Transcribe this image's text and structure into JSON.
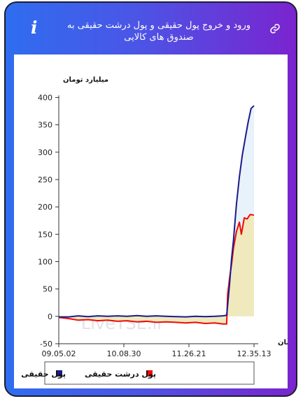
{
  "header": {
    "title": "ورود و خروج پول حقیقی و پول درشت حقیقی به صندوق های کالایی",
    "info_glyph": "i",
    "icons": {
      "info": "info-icon",
      "link": "link-icon"
    },
    "colors": {
      "gradient_start": "#2f6df0",
      "gradient_end": "#7a24cf"
    }
  },
  "chart_data": {
    "type": "area",
    "ylabel": "میلیارد تومان",
    "xlabel": "زمان",
    "ylim": [
      -50,
      400
    ],
    "yticks": [
      400,
      350,
      300,
      250,
      200,
      150,
      100,
      50,
      0,
      -50
    ],
    "xtick_labels": [
      "09.05.02",
      "10.08.30",
      "11.26.21",
      "12.35.13"
    ],
    "grid": false,
    "legend_position": "bottom",
    "watermark": "LiveTSE.ir",
    "series": [
      {
        "name": "پول حقیقی",
        "color": "#1a1a8c",
        "fill": "#e8f2fb",
        "points": [
          [
            0,
            -1
          ],
          [
            0.05,
            -1
          ],
          [
            0.1,
            1
          ],
          [
            0.15,
            -0.5
          ],
          [
            0.2,
            1
          ],
          [
            0.25,
            0
          ],
          [
            0.3,
            1
          ],
          [
            0.35,
            0
          ],
          [
            0.4,
            1.5
          ],
          [
            0.45,
            0
          ],
          [
            0.5,
            1
          ],
          [
            0.55,
            0
          ],
          [
            0.6,
            -0.5
          ],
          [
            0.65,
            -1
          ],
          [
            0.7,
            0
          ],
          [
            0.75,
            -0.5
          ],
          [
            0.8,
            0
          ],
          [
            0.84,
            1
          ],
          [
            0.86,
            2
          ],
          [
            0.865,
            20
          ],
          [
            0.875,
            60
          ],
          [
            0.885,
            105
          ],
          [
            0.895,
            140
          ],
          [
            0.91,
            205
          ],
          [
            0.925,
            255
          ],
          [
            0.94,
            295
          ],
          [
            0.955,
            325
          ],
          [
            0.97,
            355
          ],
          [
            0.985,
            380
          ],
          [
            1.0,
            385
          ]
        ]
      },
      {
        "name": "پول درشت حقیقی",
        "color": "#f00a0a",
        "fill": "#efe9bd",
        "points": [
          [
            0,
            -2
          ],
          [
            0.05,
            -4
          ],
          [
            0.1,
            -7
          ],
          [
            0.15,
            -6
          ],
          [
            0.2,
            -8
          ],
          [
            0.25,
            -7
          ],
          [
            0.3,
            -9
          ],
          [
            0.35,
            -8
          ],
          [
            0.4,
            -10
          ],
          [
            0.45,
            -9
          ],
          [
            0.5,
            -11
          ],
          [
            0.55,
            -10
          ],
          [
            0.6,
            -11
          ],
          [
            0.65,
            -12
          ],
          [
            0.7,
            -11
          ],
          [
            0.75,
            -13
          ],
          [
            0.8,
            -12
          ],
          [
            0.84,
            -14
          ],
          [
            0.86,
            -14
          ],
          [
            0.865,
            40
          ],
          [
            0.875,
            70
          ],
          [
            0.885,
            95
          ],
          [
            0.895,
            125
          ],
          [
            0.91,
            155
          ],
          [
            0.925,
            172
          ],
          [
            0.935,
            150
          ],
          [
            0.95,
            180
          ],
          [
            0.965,
            178
          ],
          [
            0.98,
            186
          ],
          [
            1.0,
            185
          ]
        ]
      }
    ]
  }
}
